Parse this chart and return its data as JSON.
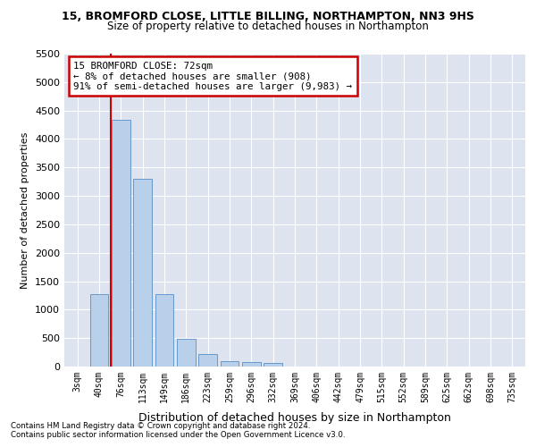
{
  "title1": "15, BROMFORD CLOSE, LITTLE BILLING, NORTHAMPTON, NN3 9HS",
  "title2": "Size of property relative to detached houses in Northampton",
  "xlabel": "Distribution of detached houses by size in Northampton",
  "ylabel": "Number of detached properties",
  "footnote1": "Contains HM Land Registry data © Crown copyright and database right 2024.",
  "footnote2": "Contains public sector information licensed under the Open Government Licence v3.0.",
  "annotation_title": "15 BROMFORD CLOSE: 72sqm",
  "annotation_line1": "← 8% of detached houses are smaller (908)",
  "annotation_line2": "91% of semi-detached houses are larger (9,983) →",
  "bar_categories": [
    "3sqm",
    "40sqm",
    "76sqm",
    "113sqm",
    "149sqm",
    "186sqm",
    "223sqm",
    "259sqm",
    "296sqm",
    "332sqm",
    "369sqm",
    "406sqm",
    "442sqm",
    "479sqm",
    "515sqm",
    "552sqm",
    "589sqm",
    "625sqm",
    "662sqm",
    "698sqm",
    "735sqm"
  ],
  "bar_values": [
    0,
    1270,
    4330,
    3300,
    1280,
    490,
    220,
    100,
    80,
    60,
    0,
    0,
    0,
    0,
    0,
    0,
    0,
    0,
    0,
    0,
    0
  ],
  "bar_color": "#b8d0ea",
  "bar_edge_color": "#6699cc",
  "vline_color": "#cc0000",
  "annotation_box_color": "#cc0000",
  "background_color": "#dde4f0",
  "ylim": [
    0,
    5500
  ],
  "yticks": [
    0,
    500,
    1000,
    1500,
    2000,
    2500,
    3000,
    3500,
    4000,
    4500,
    5000,
    5500
  ]
}
